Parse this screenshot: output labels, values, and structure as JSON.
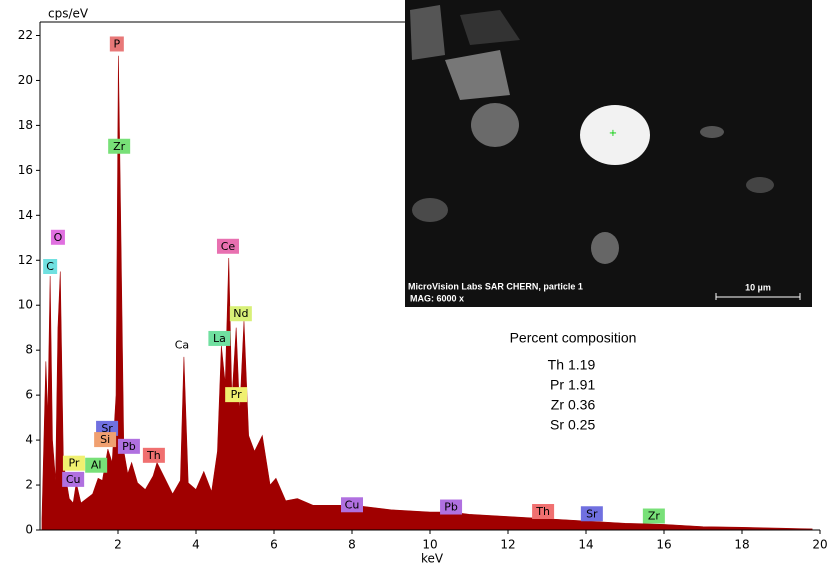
{
  "chart_data": {
    "type": "area",
    "y_axis_label": "cps/eV",
    "x_axis_label": "keV",
    "xlim": [
      0,
      20
    ],
    "xticks": [
      2,
      4,
      6,
      8,
      10,
      12,
      14,
      16,
      18,
      20
    ],
    "ylim": [
      0,
      22.6
    ],
    "yticks": [
      0,
      2,
      4,
      6,
      8,
      10,
      12,
      14,
      16,
      18,
      20,
      22
    ],
    "color": "#a00000",
    "x": [
      0.05,
      0.15,
      0.2,
      0.26,
      0.32,
      0.4,
      0.46,
      0.52,
      0.6,
      0.75,
      0.85,
      0.93,
      1.05,
      1.2,
      1.35,
      1.49,
      1.6,
      1.74,
      1.85,
      1.95,
      2.01,
      2.06,
      2.15,
      2.25,
      2.35,
      2.5,
      2.7,
      2.9,
      3.0,
      3.2,
      3.4,
      3.6,
      3.69,
      3.8,
      4.0,
      4.2,
      4.4,
      4.55,
      4.65,
      4.75,
      4.84,
      4.92,
      5.03,
      5.12,
      5.23,
      5.35,
      5.5,
      5.7,
      5.9,
      6.05,
      6.3,
      6.6,
      7.0,
      8.05,
      9.0,
      10.0,
      10.55,
      11.0,
      12.0,
      13.0,
      14.0,
      15.0,
      16.0,
      17.0,
      18.0,
      19.0,
      19.8
    ],
    "values": [
      0.5,
      7.5,
      5,
      11.3,
      4,
      2.2,
      9,
      11.5,
      3,
      1.4,
      1.2,
      2.1,
      1.2,
      1.4,
      1.6,
      2.3,
      2.2,
      3.6,
      3,
      6,
      21.1,
      15,
      3.5,
      2.5,
      3,
      2.1,
      1.8,
      2.4,
      3.0,
      2.3,
      1.6,
      2.2,
      7.7,
      2.1,
      1.8,
      2.6,
      1.7,
      3.5,
      8.2,
      6.5,
      12.1,
      5.8,
      9,
      5.2,
      9.3,
      4.2,
      3.5,
      4.2,
      2,
      2.3,
      1.3,
      1.4,
      1.1,
      1.1,
      0.9,
      0.8,
      0.8,
      0.7,
      0.6,
      0.5,
      0.4,
      0.3,
      0.25,
      0.15,
      0.12,
      0.08,
      0.05
    ],
    "peak_labels": [
      {
        "label": "P",
        "energy": 1.97,
        "height": 21.6,
        "color": "#e87878"
      },
      {
        "label": "Zr",
        "energy": 2.03,
        "height": 17.05,
        "color": "#78e078"
      },
      {
        "label": "O",
        "energy": 0.46,
        "height": 13.0,
        "color": "#e070e0"
      },
      {
        "label": "C",
        "energy": 0.26,
        "height": 11.7,
        "color": "#70e0e0"
      },
      {
        "label": "Ce",
        "energy": 4.82,
        "height": 12.6,
        "color": "#e870b0"
      },
      {
        "label": "Nd",
        "energy": 5.15,
        "height": 9.6,
        "color": "#d8f078"
      },
      {
        "label": "La",
        "energy": 4.6,
        "height": 8.5,
        "color": "#70e0a0"
      },
      {
        "label": "Ca",
        "energy": 3.64,
        "height": 8.2,
        "color": "none"
      },
      {
        "label": "Pr",
        "energy": 5.03,
        "height": 6.0,
        "color": "#f0f070"
      },
      {
        "label": "Sr",
        "energy": 1.72,
        "height": 4.5,
        "color": "#7070e0"
      },
      {
        "label": "Si",
        "energy": 1.67,
        "height": 4.0,
        "color": "#f0a070"
      },
      {
        "label": "Pb",
        "energy": 2.28,
        "height": 3.7,
        "color": "#b070e0"
      },
      {
        "label": "Th",
        "energy": 2.92,
        "height": 3.3,
        "color": "#f07070"
      },
      {
        "label": "Pr",
        "energy": 0.87,
        "height": 2.95,
        "color": "#f0f070"
      },
      {
        "label": "Al",
        "energy": 1.44,
        "height": 2.86,
        "color": "#78e078"
      },
      {
        "label": "Cu",
        "energy": 0.85,
        "height": 2.23,
        "color": "#b070e0"
      },
      {
        "label": "Cu",
        "energy": 8.0,
        "height": 1.1,
        "color": "#b070e0"
      },
      {
        "label": "Pb",
        "energy": 10.54,
        "height": 1.0,
        "color": "#b070e0"
      },
      {
        "label": "Th",
        "energy": 12.9,
        "height": 0.8,
        "color": "#f07070"
      },
      {
        "label": "Sr",
        "energy": 14.15,
        "height": 0.7,
        "color": "#7070e0"
      },
      {
        "label": "Zr",
        "energy": 15.74,
        "height": 0.6,
        "color": "#78e078"
      }
    ]
  },
  "image": {
    "caption": "MicroVision Labs  SAR CHERN, particle 1",
    "magnification": "MAG: 6000 x",
    "scale_bar": "10 µm"
  },
  "composition": {
    "title": "Percent composition",
    "rows": [
      [
        "Th",
        "1.19"
      ],
      [
        "Pr",
        "1.91"
      ],
      [
        "Zr",
        "0.36"
      ],
      [
        "Sr",
        "0.25"
      ]
    ]
  }
}
